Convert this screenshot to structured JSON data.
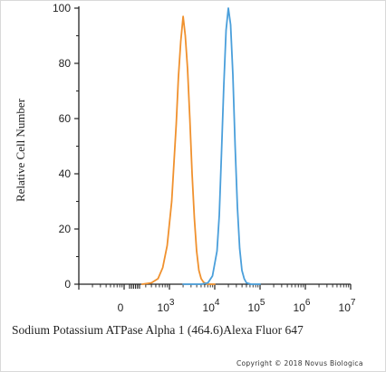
{
  "chart_data": {
    "type": "line",
    "title": "",
    "xlabel": "Sodium Potassium ATPase Alpha 1 (464.6)Alexa Fluor 647",
    "ylabel": "Relative Cell Number",
    "x_scale": "log",
    "xlim": [
      10,
      10000000
    ],
    "ylim": [
      0,
      100
    ],
    "y_ticks": [
      "0",
      "20",
      "40",
      "60",
      "80",
      "100"
    ],
    "x_ticks": [
      {
        "base": "0",
        "exp": ""
      },
      {
        "base": "10",
        "exp": "3"
      },
      {
        "base": "10",
        "exp": "4"
      },
      {
        "base": "10",
        "exp": "5"
      },
      {
        "base": "10",
        "exp": "6"
      },
      {
        "base": "10",
        "exp": "7"
      }
    ],
    "grid": false,
    "series": [
      {
        "color": "#f0912e",
        "x": [
          250,
          400,
          560,
          710,
          890,
          1120,
          1410,
          1580,
          1780,
          2000,
          2240,
          2510,
          2820,
          3160,
          3550,
          3980,
          4470,
          5010,
          5620,
          6310,
          7080,
          10000
        ],
        "y": [
          0,
          0.5,
          2,
          6,
          14,
          30,
          58,
          75,
          88,
          97,
          90,
          78,
          60,
          40,
          24,
          12,
          5,
          2,
          0.8,
          0.3,
          0,
          0
        ]
      },
      {
        "color": "#4a9fdb",
        "x": [
          2000,
          5010,
          7080,
          8910,
          11220,
          12590,
          14130,
          15850,
          17780,
          19950,
          22390,
          25120,
          28180,
          31620,
          35480,
          39810,
          44670,
          50120,
          63100,
          100000
        ],
        "y": [
          0,
          0,
          0.5,
          3,
          12,
          25,
          48,
          72,
          92,
          100,
          94,
          76,
          50,
          28,
          13,
          5,
          2,
          0.5,
          0,
          0
        ]
      }
    ]
  },
  "copyright": "Copyright © 2018 Novus Biologica"
}
